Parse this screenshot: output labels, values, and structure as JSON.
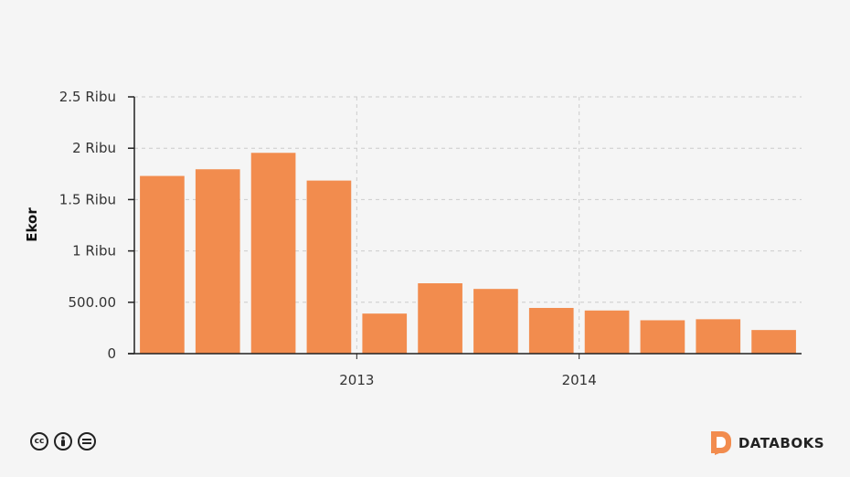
{
  "chart_data": {
    "type": "bar",
    "ylabel": "Ekor",
    "ylim": [
      0,
      2500
    ],
    "yticks": [
      {
        "value": 0,
        "label": "0"
      },
      {
        "value": 500,
        "label": "500.00"
      },
      {
        "value": 1000,
        "label": "1 Ribu"
      },
      {
        "value": 1500,
        "label": "1.5 Ribu"
      },
      {
        "value": 2000,
        "label": "2 Ribu"
      },
      {
        "value": 2500,
        "label": "2.5 Ribu"
      }
    ],
    "xticks": [
      {
        "label": "2013",
        "after_bar": 4
      },
      {
        "label": "2014",
        "after_bar": 8
      }
    ],
    "values": [
      1730,
      1795,
      1955,
      1685,
      390,
      685,
      630,
      445,
      420,
      325,
      335,
      230
    ],
    "bar_color": "#f28c4e",
    "grid": true
  },
  "footer": {
    "license_icons": [
      "cc-icon",
      "by-icon",
      "nd-icon"
    ],
    "brand_name": "DATABOKS",
    "brand_color": "#f28c4e"
  }
}
